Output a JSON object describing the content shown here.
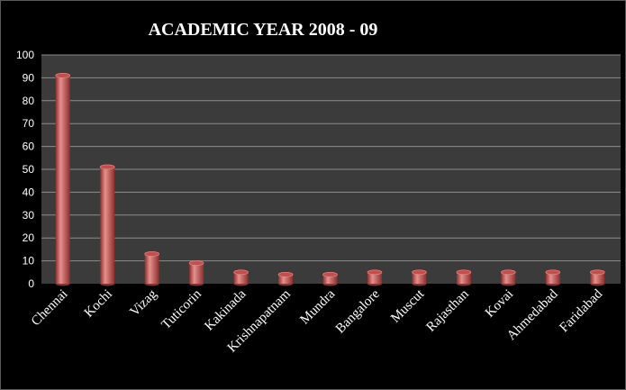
{
  "chart_data": {
    "type": "bar",
    "title": "ACADEMIC YEAR 2008 - 09",
    "xlabel": "",
    "ylabel": "",
    "categories": [
      "Chennai",
      "Kochi",
      "Vizag",
      "Tuticorin",
      "Kakinada",
      "Krishnapatnam",
      "Mundra",
      "Bangalore",
      "Muscut",
      "Rajasthan",
      "Kovai",
      "Ahmedabad",
      "Faridabad"
    ],
    "values": [
      91,
      51,
      13,
      9,
      5,
      4,
      4,
      5,
      5,
      5,
      5,
      5,
      5
    ],
    "ylim": [
      0,
      100
    ],
    "yticks": [
      "0",
      "10",
      "20",
      "30",
      "40",
      "50",
      "60",
      "70",
      "80",
      "90",
      "100"
    ],
    "grid": true,
    "legend": "none",
    "style": "3d-cylinder bars",
    "colors": {
      "background": "#000000",
      "plot_area": "#3b3b3b",
      "gridline": "#8c8c8c",
      "bar": "#c0504d",
      "bar_light": "#e6908e",
      "bar_dark": "#8c2e2c",
      "text": "#ffffff"
    }
  }
}
